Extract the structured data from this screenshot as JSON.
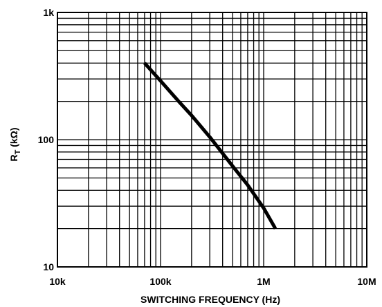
{
  "chart_data": {
    "type": "line",
    "title": "",
    "xlabel": "SWITCHING FREQUENCY (Hz)",
    "ylabel_main": "R",
    "ylabel_sub": "T",
    "ylabel_rest": " (kΩ)",
    "x_scale": "log",
    "y_scale": "log",
    "xlim": [
      10000,
      10000000
    ],
    "ylim": [
      10,
      1000
    ],
    "grid": true,
    "x_ticks": [
      {
        "value": 10000,
        "label": "10k"
      },
      {
        "value": 100000,
        "label": "100k"
      },
      {
        "value": 1000000,
        "label": "1M"
      },
      {
        "value": 10000000,
        "label": "10M"
      }
    ],
    "y_ticks": [
      {
        "value": 10,
        "label": "10"
      },
      {
        "value": 100,
        "label": "100"
      },
      {
        "value": 1000,
        "label": "1k"
      }
    ],
    "series": [
      {
        "x": [
          70000,
          100000,
          150000,
          200000,
          300000,
          500000,
          700000,
          1000000,
          1300000
        ],
        "y": [
          400,
          290,
          200,
          155,
          105,
          62,
          44,
          29,
          20
        ]
      }
    ]
  }
}
